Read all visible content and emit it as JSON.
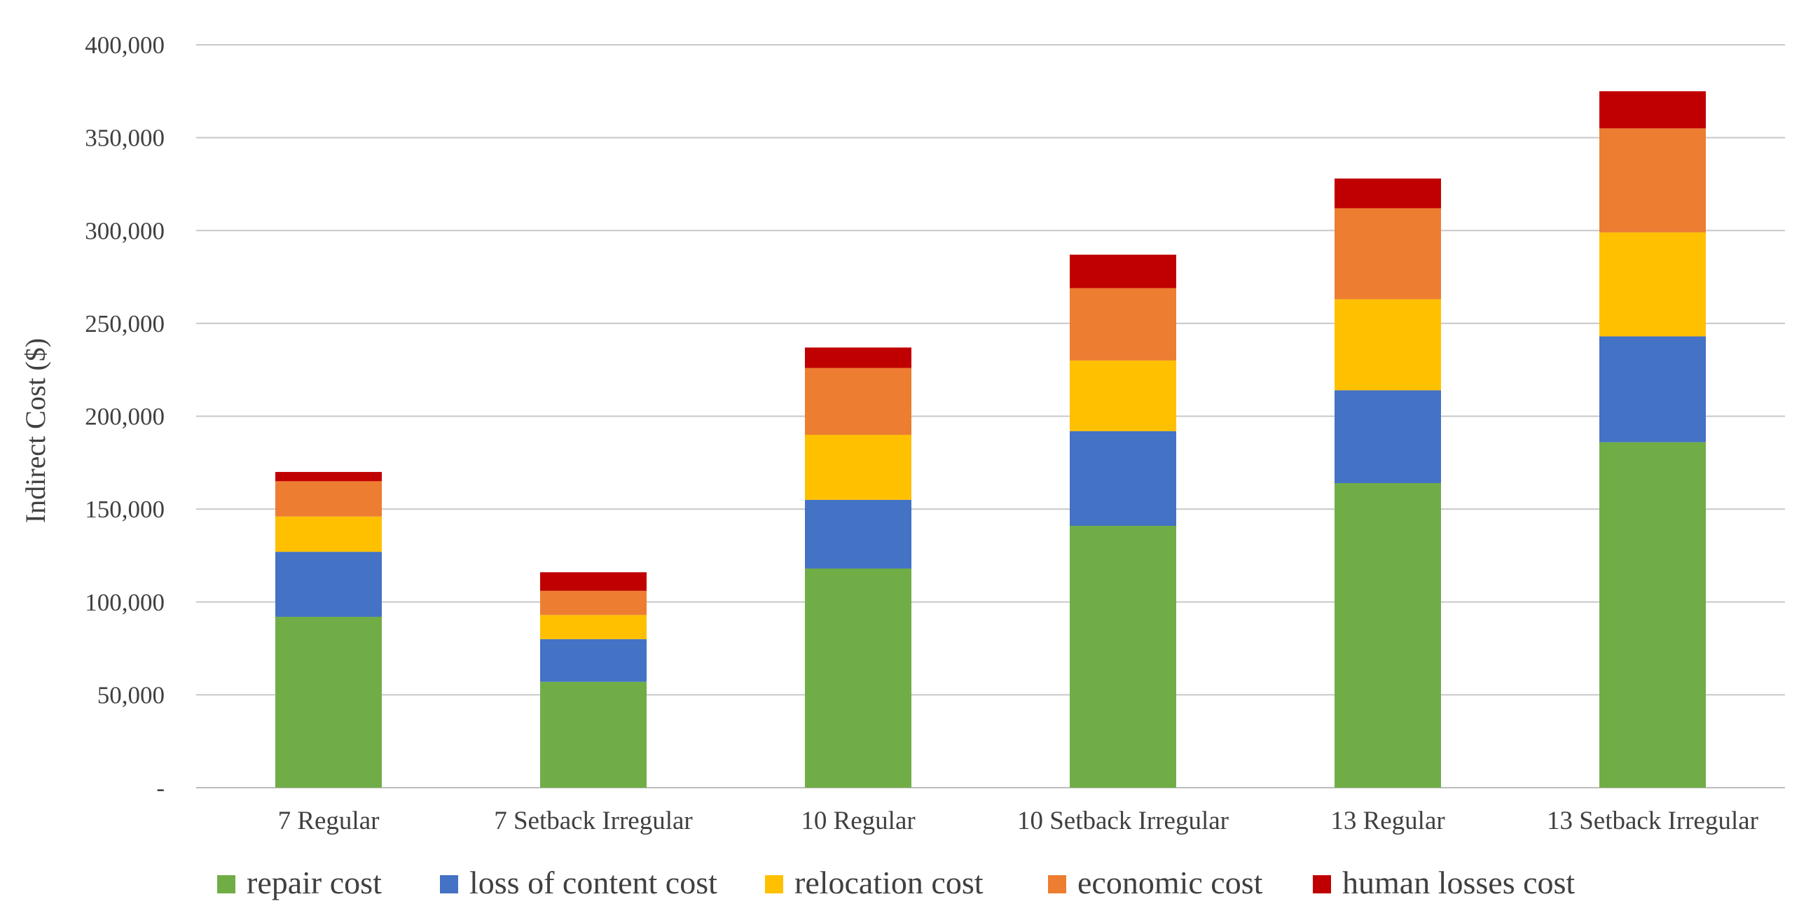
{
  "chart_data": {
    "type": "bar",
    "stacked": true,
    "title": "",
    "xlabel": "",
    "ylabel": "Indirect Cost ($)",
    "ylim": [
      0,
      400000
    ],
    "yticks": [
      0,
      50000,
      100000,
      150000,
      200000,
      250000,
      300000,
      350000,
      400000
    ],
    "ytick_labels": [
      "-",
      "50,000",
      "100,000",
      "150,000",
      "200,000",
      "250,000",
      "300,000",
      "350,000",
      "400,000"
    ],
    "grid": true,
    "legend_position": "bottom",
    "categories": [
      "7 Regular",
      "7 Setback Irregular",
      "10 Regular",
      "10 Setback Irregular",
      "13 Regular",
      "13 Setback Irregular"
    ],
    "series": [
      {
        "name": "repair cost",
        "color": "#70AD47",
        "values": [
          92000,
          57000,
          118000,
          141000,
          164000,
          186000
        ]
      },
      {
        "name": "loss of content cost",
        "color": "#4472C4",
        "values": [
          35000,
          23000,
          37000,
          51000,
          50000,
          57000
        ]
      },
      {
        "name": "relocation cost",
        "color": "#FFC000",
        "values": [
          19000,
          13000,
          35000,
          38000,
          49000,
          56000
        ]
      },
      {
        "name": "economic cost",
        "color": "#ED7D31",
        "values": [
          19000,
          13000,
          36000,
          39000,
          49000,
          56000
        ]
      },
      {
        "name": "human losses cost",
        "color": "#C00000",
        "values": [
          5000,
          10000,
          11000,
          18000,
          16000,
          20000
        ]
      }
    ]
  }
}
